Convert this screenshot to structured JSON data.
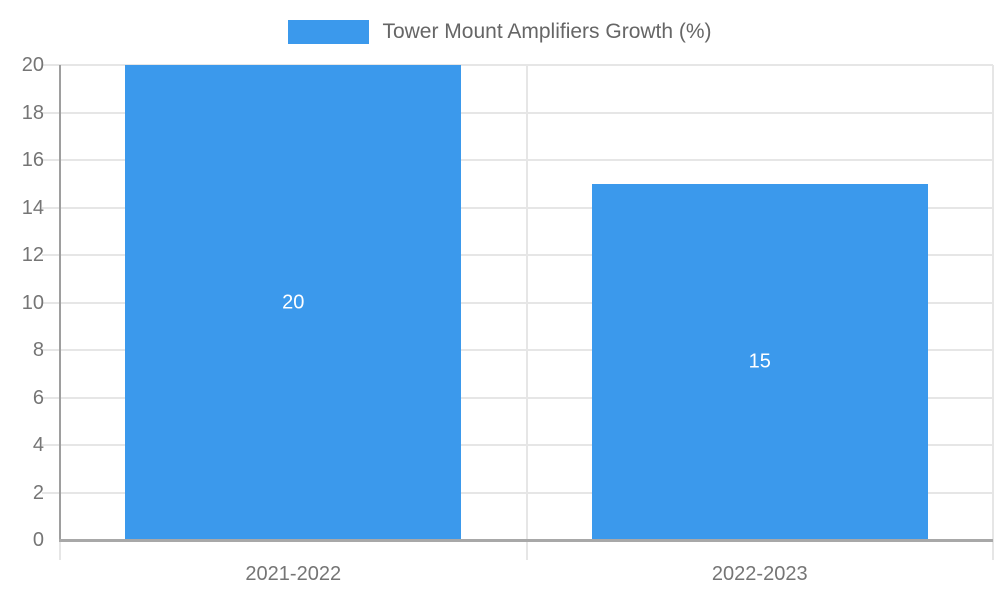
{
  "chart_data": {
    "type": "bar",
    "title": "",
    "legend": {
      "label": "Tower Mount Amplifiers Growth (%)",
      "position": "top-center"
    },
    "categories": [
      "2021-2022",
      "2022-2023"
    ],
    "series": [
      {
        "name": "Tower Mount Amplifiers Growth (%)",
        "values": [
          20,
          15
        ]
      }
    ],
    "data_labels": [
      "20",
      "15"
    ],
    "xlabel": "",
    "ylabel": "",
    "ylim": [
      0,
      20
    ],
    "ytick_step": 2,
    "yticks": [
      0,
      2,
      4,
      6,
      8,
      10,
      12,
      14,
      16,
      18,
      20
    ],
    "grid": true,
    "legend_position": "top"
  },
  "colors": {
    "bar": "#3b99ec",
    "grid": "#e6e6e6",
    "axis": "#9e9e9e",
    "tick_text": "#757575",
    "legend_text": "#666666",
    "bar_label_text": "#ffffff",
    "background": "#ffffff"
  }
}
